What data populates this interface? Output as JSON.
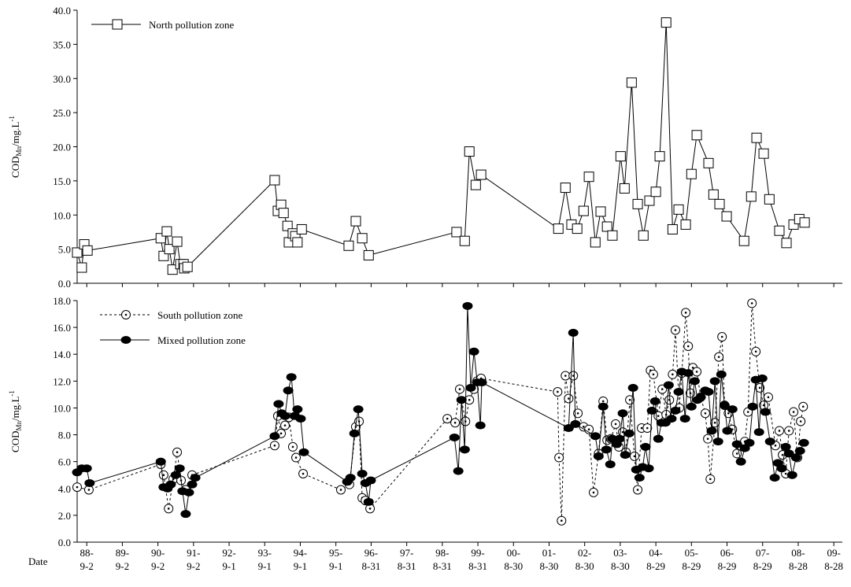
{
  "chart_data": [
    {
      "type": "line",
      "ylabel": {
        "main": "COD",
        "sub": "Mn",
        "unit": "/mg.L",
        "sup": "-1"
      },
      "legend": "upper left",
      "xlim": [
        1988.4,
        2009.9
      ],
      "xticks": [
        1988.67,
        1989.67,
        1990.67,
        1991.67,
        1992.67,
        1993.67,
        1994.67,
        1995.67,
        1996.66,
        1997.66,
        1998.66,
        1999.66,
        2000.66,
        2001.66,
        2002.66,
        2003.66,
        2004.66,
        2005.66,
        2006.66,
        2007.66,
        2008.66,
        2009.66
      ],
      "ylim": [
        0,
        40
      ],
      "yticks": [
        {
          "value": 0,
          "label": "0.0"
        },
        {
          "value": 5,
          "label": "5.0"
        },
        {
          "value": 10,
          "label": "10.0"
        },
        {
          "value": 15,
          "label": "15.0"
        },
        {
          "value": 20,
          "label": "20.0"
        },
        {
          "value": 25,
          "label": "25.0"
        },
        {
          "value": 30,
          "label": "30.0"
        },
        {
          "value": 35,
          "label": "35.0"
        },
        {
          "value": 40,
          "label": "40.0"
        }
      ],
      "series": [
        {
          "name": "North pollution zone",
          "color": "#000000",
          "marker": "square",
          "line_style": "solid",
          "x": [
            1988.4,
            1988.53,
            1988.6,
            1988.69,
            1990.75,
            1990.83,
            1990.92,
            1990.99,
            1991.08,
            1991.21,
            1991.3,
            1991.39,
            1991.41,
            1991.5,
            1993.95,
            1994.04,
            1994.13,
            1994.2,
            1994.31,
            1994.35,
            1994.46,
            1994.53,
            1994.59,
            1994.71,
            1996.03,
            1996.23,
            1996.41,
            1996.59,
            1999.06,
            1999.29,
            1999.42,
            1999.6,
            1999.75,
            2001.92,
            2002.12,
            2002.29,
            2002.45,
            2002.63,
            2002.78,
            2002.96,
            2003.11,
            2003.29,
            2003.44,
            2003.67,
            2003.78,
            2003.98,
            2004.15,
            2004.31,
            2004.48,
            2004.66,
            2004.77,
            2004.95,
            2005.13,
            2005.3,
            2005.5,
            2005.66,
            2005.81,
            2006.14,
            2006.28,
            2006.45,
            2006.65,
            2007.14,
            2007.34,
            2007.49,
            2007.69,
            2007.85,
            2008.13,
            2008.33,
            2008.53,
            2008.69,
            2008.84
          ],
          "values": [
            4.5,
            2.3,
            5.7,
            4.8,
            6.6,
            4.0,
            7.6,
            5.0,
            2.0,
            6.1,
            2.8,
            2.8,
            2.2,
            2.4,
            15.1,
            10.6,
            11.5,
            10.3,
            8.4,
            6.0,
            7.3,
            6.9,
            6.0,
            7.9,
            5.5,
            9.1,
            6.6,
            4.1,
            7.5,
            6.2,
            19.3,
            14.4,
            15.9,
            8.0,
            14.0,
            8.6,
            8.0,
            10.6,
            15.6,
            6.0,
            10.5,
            8.3,
            7.0,
            18.6,
            13.9,
            29.4,
            11.6,
            7.0,
            12.1,
            13.4,
            18.6,
            38.2,
            7.9,
            10.8,
            8.6,
            16.0,
            21.7,
            17.6,
            13.0,
            11.6,
            9.8,
            6.2,
            12.7,
            21.3,
            19.0,
            12.3,
            7.7,
            5.9,
            8.6,
            9.4,
            8.9
          ]
        }
      ]
    },
    {
      "type": "line",
      "ylabel": {
        "main": "COD",
        "sub": "Mn",
        "unit": "/mg.L",
        "sup": "-1"
      },
      "x_label": "Date",
      "legend": "upper left",
      "xlim": [
        1988.4,
        2009.9
      ],
      "xticks": [
        {
          "value": 1988.67,
          "label": "88-9-2"
        },
        {
          "value": 1989.67,
          "label": "89-9-2"
        },
        {
          "value": 1990.67,
          "label": "90-9-2"
        },
        {
          "value": 1991.67,
          "label": "91-9-2"
        },
        {
          "value": 1992.67,
          "label": "92-9-1"
        },
        {
          "value": 1993.67,
          "label": "93-9-1"
        },
        {
          "value": 1994.67,
          "label": "94-9-1"
        },
        {
          "value": 1995.67,
          "label": "95-9-1"
        },
        {
          "value": 1996.66,
          "label": "96-8-31"
        },
        {
          "value": 1997.66,
          "label": "97-8-31"
        },
        {
          "value": 1998.66,
          "label": "98-8-31"
        },
        {
          "value": 1999.66,
          "label": "99-8-31"
        },
        {
          "value": 2000.66,
          "label": "00-8-30"
        },
        {
          "value": 2001.66,
          "label": "01-8-30"
        },
        {
          "value": 2002.66,
          "label": "02-8-30"
        },
        {
          "value": 2003.66,
          "label": "03-8-30"
        },
        {
          "value": 2004.66,
          "label": "04-8-29"
        },
        {
          "value": 2005.66,
          "label": "05-8-29"
        },
        {
          "value": 2006.66,
          "label": "06-8-29"
        },
        {
          "value": 2007.66,
          "label": "07-8-29"
        },
        {
          "value": 2008.66,
          "label": "08-8-28"
        },
        {
          "value": 2009.66,
          "label": "09-8-28"
        }
      ],
      "ylim": [
        0,
        18
      ],
      "yticks": [
        {
          "value": 0,
          "label": "0.0"
        },
        {
          "value": 2,
          "label": "2.0"
        },
        {
          "value": 4,
          "label": "4.0"
        },
        {
          "value": 6,
          "label": "6.0"
        },
        {
          "value": 8,
          "label": "8.0"
        },
        {
          "value": 10,
          "label": "10.0"
        },
        {
          "value": 12,
          "label": "12.0"
        },
        {
          "value": 14,
          "label": "14.0"
        },
        {
          "value": 16,
          "label": "16.0"
        },
        {
          "value": 18,
          "label": "18.0"
        }
      ],
      "series": [
        {
          "name": "South pollution zone",
          "color": "#000000",
          "marker": "dotcircle",
          "line_style": "dotted",
          "x": [
            1988.4,
            1988.73,
            1990.75,
            1990.83,
            1990.97,
            1991.1,
            1991.21,
            1991.32,
            1991.45,
            1991.63,
            1993.95,
            1994.04,
            1994.13,
            1994.24,
            1994.35,
            1994.46,
            1994.55,
            1994.75,
            1995.81,
            1996.05,
            1996.23,
            1996.32,
            1996.41,
            1996.5,
            1996.63,
            1998.8,
            1999.02,
            1999.15,
            1999.31,
            1999.42,
            1999.55,
            1999.64,
            1999.75,
            2001.9,
            2001.94,
            2002.01,
            2002.12,
            2002.21,
            2002.34,
            2002.47,
            2002.63,
            2002.78,
            2002.91,
            2003.05,
            2003.18,
            2003.29,
            2003.4,
            2003.53,
            2003.62,
            2003.73,
            2003.82,
            2003.93,
            2004.06,
            2004.15,
            2004.26,
            2004.42,
            2004.51,
            2004.59,
            2004.73,
            2004.84,
            2004.95,
            2005.04,
            2005.13,
            2005.21,
            2005.32,
            2005.39,
            2005.5,
            2005.57,
            2005.63,
            2005.7,
            2005.81,
            2005.92,
            2006.05,
            2006.12,
            2006.19,
            2006.32,
            2006.43,
            2006.52,
            2006.59,
            2006.7,
            2006.81,
            2006.94,
            2007.03,
            2007.16,
            2007.25,
            2007.36,
            2007.47,
            2007.58,
            2007.69,
            2007.82,
            2008.02,
            2008.13,
            2008.22,
            2008.31,
            2008.4,
            2008.53,
            2008.64,
            2008.73,
            2008.8
          ],
          "values": [
            4.1,
            3.9,
            5.8,
            5.0,
            2.5,
            4.7,
            6.7,
            4.6,
            3.9,
            5.0,
            7.2,
            9.4,
            8.1,
            8.7,
            9.3,
            7.1,
            6.3,
            5.1,
            3.9,
            4.3,
            8.6,
            9.0,
            3.3,
            3.1,
            2.5,
            9.2,
            8.9,
            11.4,
            9.0,
            10.6,
            11.4,
            12.0,
            12.2,
            11.2,
            6.3,
            1.6,
            12.4,
            10.7,
            12.4,
            9.6,
            8.6,
            8.4,
            3.7,
            6.6,
            10.5,
            7.6,
            7.7,
            8.8,
            7.1,
            8.2,
            6.7,
            10.6,
            6.4,
            3.9,
            8.5,
            8.5,
            12.8,
            12.5,
            9.4,
            11.4,
            9.5,
            10.6,
            12.5,
            15.8,
            10.0,
            12.6,
            17.1,
            14.6,
            11.1,
            13.0,
            12.7,
            10.8,
            9.6,
            7.7,
            4.7,
            8.9,
            13.8,
            15.3,
            10.2,
            9.6,
            8.4,
            6.6,
            7.2,
            7.5,
            9.7,
            17.8,
            14.2,
            11.5,
            10.2,
            10.8,
            7.2,
            8.3,
            6.5,
            5.1,
            8.3,
            9.7,
            6.3,
            9.0,
            10.1
          ]
        },
        {
          "name": "Mixed pollution zone",
          "color": "#000000",
          "marker": "disc",
          "line_style": "solid",
          "x": [
            1988.4,
            1988.53,
            1988.67,
            1988.75,
            1990.75,
            1990.83,
            1990.94,
            1991.03,
            1991.17,
            1991.28,
            1991.36,
            1991.45,
            1991.54,
            1991.63,
            1991.72,
            1993.95,
            1994.06,
            1994.15,
            1994.24,
            1994.33,
            1994.42,
            1994.51,
            1994.59,
            1994.68,
            1994.77,
            1995.99,
            1996.08,
            1996.19,
            1996.3,
            1996.41,
            1996.5,
            1996.59,
            1996.65,
            1999.0,
            1999.11,
            1999.2,
            1999.29,
            1999.37,
            1999.46,
            1999.55,
            1999.64,
            1999.73,
            1999.77,
            2002.21,
            2002.34,
            2002.4,
            2002.96,
            2003.05,
            2003.18,
            2003.27,
            2003.38,
            2003.44,
            2003.56,
            2003.64,
            2003.73,
            2003.8,
            2003.91,
            2004.02,
            2004.11,
            2004.2,
            2004.29,
            2004.37,
            2004.46,
            2004.55,
            2004.64,
            2004.73,
            2004.82,
            2004.93,
            2005.02,
            2005.1,
            2005.21,
            2005.3,
            2005.39,
            2005.48,
            2005.57,
            2005.66,
            2005.75,
            2005.83,
            2005.92,
            2006.05,
            2006.14,
            2006.23,
            2006.32,
            2006.41,
            2006.5,
            2006.59,
            2006.67,
            2006.81,
            2006.94,
            2007.05,
            2007.16,
            2007.29,
            2007.38,
            2007.47,
            2007.56,
            2007.65,
            2007.74,
            2007.87,
            2008.0,
            2008.09,
            2008.2,
            2008.31,
            2008.4,
            2008.49,
            2008.6,
            2008.71,
            2008.82
          ],
          "values": [
            5.2,
            5.5,
            5.5,
            4.4,
            6.0,
            4.1,
            4.0,
            4.3,
            5.0,
            5.5,
            3.8,
            2.1,
            3.7,
            4.3,
            4.8,
            7.9,
            10.3,
            9.6,
            9.4,
            11.3,
            12.3,
            9.4,
            9.9,
            9.2,
            6.7,
            4.5,
            4.8,
            8.1,
            9.9,
            5.1,
            4.4,
            3.0,
            4.6,
            7.8,
            5.3,
            10.6,
            6.9,
            17.6,
            11.5,
            14.2,
            11.9,
            8.7,
            11.9,
            8.5,
            15.6,
            8.8,
            7.9,
            6.4,
            10.1,
            6.9,
            5.8,
            7.7,
            7.3,
            7.7,
            9.6,
            6.5,
            8.1,
            11.5,
            5.4,
            4.8,
            5.6,
            7.1,
            5.5,
            9.8,
            10.5,
            7.7,
            8.9,
            8.9,
            11.7,
            9.2,
            9.8,
            11.2,
            12.7,
            9.2,
            12.6,
            10.1,
            12.0,
            10.6,
            10.8,
            11.3,
            11.2,
            8.3,
            12.0,
            7.5,
            12.5,
            10.2,
            8.3,
            9.9,
            7.3,
            6.0,
            7.0,
            7.4,
            10.1,
            12.1,
            8.2,
            12.2,
            9.7,
            7.5,
            4.8,
            5.9,
            5.5,
            7.1,
            6.6,
            5.0,
            6.3,
            6.8,
            7.4
          ]
        }
      ]
    }
  ]
}
